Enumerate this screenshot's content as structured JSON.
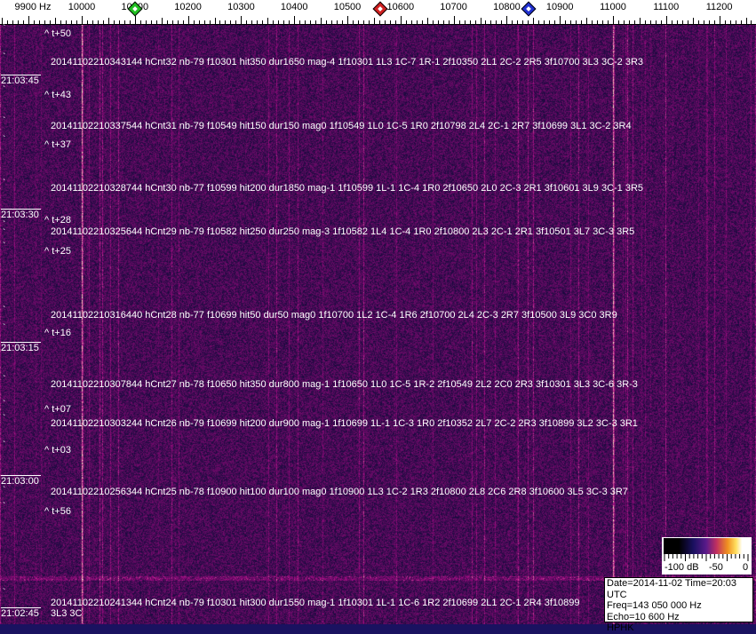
{
  "axis": {
    "unit_label": "9900 Hz",
    "freq_labels": [
      "10000",
      "10100",
      "10200",
      "10300",
      "10400",
      "10500",
      "10600",
      "10700",
      "10800",
      "10900",
      "11000",
      "11100",
      "11200"
    ],
    "markers": [
      {
        "name": "green-marker",
        "freq": 10100,
        "color": "#20c020"
      },
      {
        "name": "red-marker",
        "freq": 10562,
        "color": "#d02020"
      },
      {
        "name": "blue-marker",
        "freq": 10841,
        "color": "#2030d0"
      }
    ]
  },
  "spectrogram": {
    "background_color": "#1a1260",
    "strong_lines_hz": [
      10000,
      11000
    ],
    "offsets": [
      "^ t+50",
      "^ t+43",
      "^ t+37",
      "^ t+28",
      "^ t+25",
      "^ t+16",
      "^ t+07",
      "^ t+03",
      "^ t+56"
    ],
    "times": [
      "21:03:45",
      "21:03:30",
      "21:03:15",
      "21:03:00",
      "21:02:45"
    ],
    "detections": [
      "20141102210343144 hCnt32 nb-79 f10301 hit350 dur1650 mag-4 1f10301 1L3 1C-7 1R-1 2f10350 2L1 2C-2 2R5 3f10700 3L3 3C-2 3R3",
      "20141102210337544 hCnt31 nb-79 f10549 hit150 dur150 mag0 1f10549 1L0 1C-5 1R0 2f10798 2L4 2C-1 2R7 3f10699 3L1 3C-2 3R4",
      "20141102210328744 hCnt30 nb-77 f10599 hit200 dur1850 mag-1 1f10599 1L-1 1C-4 1R0 2f10650 2L0 2C-3 2R1 3f10601 3L9 3C-1 3R5",
      "20141102210325644 hCnt29 nb-79 f10582 hit250 dur250 mag-3 1f10582 1L4 1C-4 1R0 2f10800 2L3 2C-1 2R1 3f10501 3L7 3C-3 3R5",
      "20141102210316440 hCnt28 nb-77 f10699 hit50 dur50 mag0 1f10700 1L2 1C-4 1R6 2f10700 2L4 2C-3 2R7 3f10500 3L9 3C0 3R9",
      "20141102210307844 hCnt27 nb-78 f10650 hit350 dur800 mag-1 1f10650 1L0 1C-5 1R-2 2f10549 2L2 2C0 2R3 3f10301 3L3 3C-6 3R-3",
      "20141102210303244 hCnt26 nb-79 f10699 hit200 dur900 mag-1 1f10699 1L-1 1C-3 1R0 2f10352 2L7 2C-2 2R3 3f10899 3L2 3C-3 3R1",
      "20141102210256344 hCnt25 nb-78 f10900 hit100 dur100 mag0 1f10900 1L3 1C-2 1R3 2f10800 2L8 2C6 2R8 3f10600 3L5 3C-3 3R7",
      "20141102210241344 hCnt24 nb-79 f10301 hit300 dur1550 mag-1 1f10301 1L-1 1C-6 1R2 2f10699 2L1 2C-1 2R4 3f10899 3L3 3C"
    ]
  },
  "legend": {
    "labels": [
      "-100 dB",
      "-50",
      "0"
    ]
  },
  "info": {
    "line1": "Date=2014-11-02 Time=20:03 UTC",
    "line2": "Freq=143 050 000 Hz",
    "line3": "Echo=10 600 Hz",
    "line4": "HPHK"
  }
}
